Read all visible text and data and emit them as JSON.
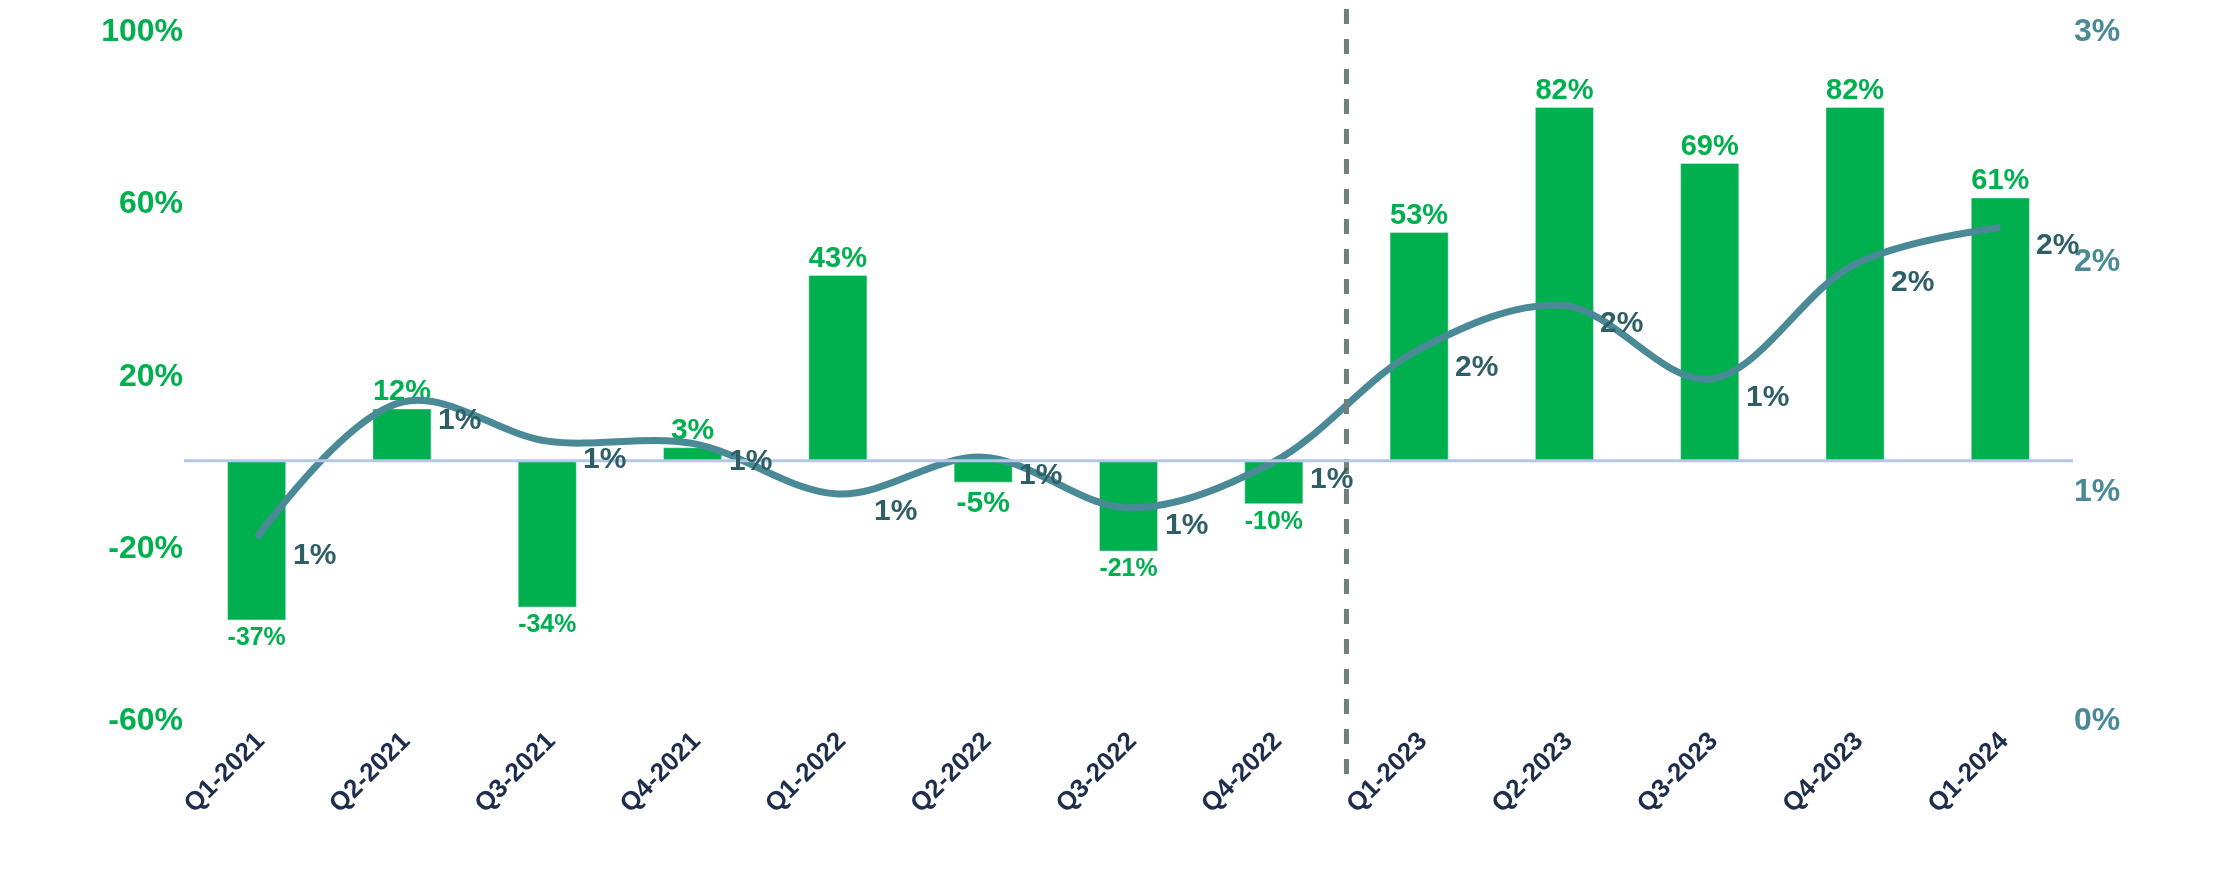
{
  "chart_data": {
    "type": "bar",
    "categories": [
      "Q1-2021",
      "Q2-2021",
      "Q3-2021",
      "Q4-2021",
      "Q1-2022",
      "Q2-2022",
      "Q3-2022",
      "Q4-2022",
      "Q1-2023",
      "Q2-2023",
      "Q3-2023",
      "Q4-2023",
      "Q1-2024"
    ],
    "series": [
      {
        "color": "#00b04f",
        "values": [
          -37,
          12,
          -34,
          3,
          43,
          -5,
          -21,
          -10,
          53,
          82,
          69,
          82,
          61
        ],
        "value_labels": [
          "-37%",
          "12%",
          "-34%",
          "3%",
          "43%",
          "-5%",
          "-21%",
          "-10%",
          "53%",
          "82%",
          "69%",
          "82%",
          "61%"
        ]
      },
      {
        "type": "line",
        "axis": "y2",
        "color": "#4a8a96",
        "values": [
          0.79,
          1.38,
          1.21,
          1.2,
          0.98,
          1.14,
          0.92,
          1.12,
          1.61,
          1.8,
          1.48,
          1.98,
          2.14
        ],
        "value_labels": [
          "1%",
          "1%",
          "1%",
          "1%",
          "1%",
          "1%",
          "1%",
          "1%",
          "2%",
          "2%",
          "1%",
          "2%",
          "2%"
        ]
      }
    ],
    "ylim": [
      -60,
      100
    ],
    "yticks": [
      {
        "value": -60,
        "label": "-60%"
      },
      {
        "value": -20,
        "label": "-20%"
      },
      {
        "value": 20,
        "label": "20%"
      },
      {
        "value": 60,
        "label": "60%"
      },
      {
        "value": 100,
        "label": "100%"
      }
    ],
    "y2lim": [
      0,
      3
    ],
    "y2ticks": [
      {
        "value": 0,
        "label": "0%"
      },
      {
        "value": 1,
        "label": "1%"
      },
      {
        "value": 2,
        "label": "2%"
      },
      {
        "value": 3,
        "label": "3%"
      }
    ],
    "ref_lines": [
      {
        "axis": "y",
        "value": 0,
        "color": "#b4c7e7",
        "line_style": "solid"
      }
    ],
    "legend": false,
    "marker": "none",
    "line_style": "solid"
  }
}
